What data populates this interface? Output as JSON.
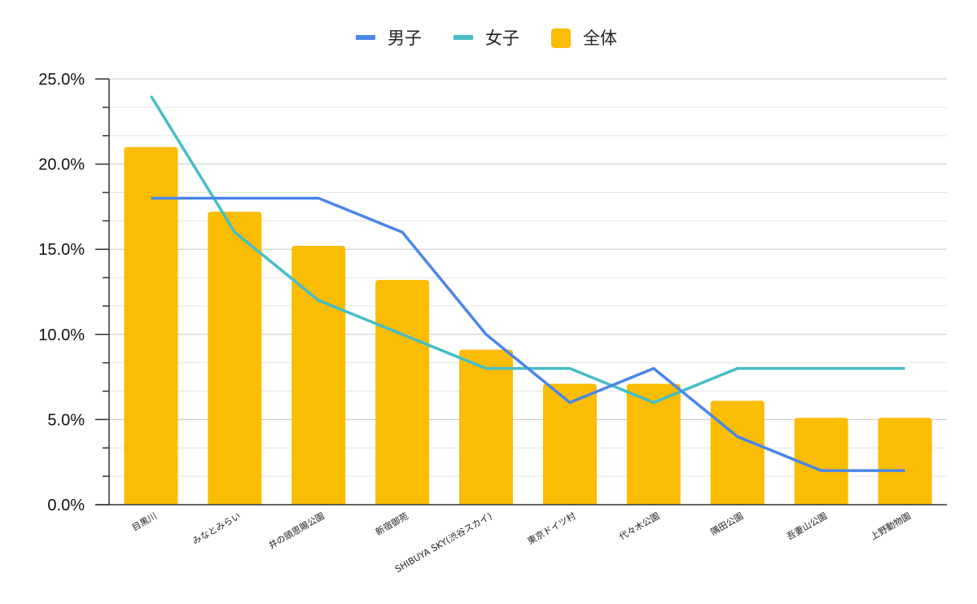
{
  "chart_data": {
    "type": "bar",
    "categories": [
      "目黒川",
      "みなとみらい",
      "井の頭恩賜公園",
      "新宿御苑",
      "SHIBUYA SKY(渋谷スカイ)",
      "東京ドイツ村",
      "代々木公園",
      "隅田公園",
      "吾妻山公園",
      "上野動物園"
    ],
    "series": [
      {
        "name": "男子",
        "kind": "line",
        "color": "#4a86e8",
        "values": [
          18,
          18,
          18,
          16,
          10,
          6,
          8,
          4,
          2,
          2
        ]
      },
      {
        "name": "女子",
        "kind": "line",
        "color": "#46bdc6",
        "values": [
          24,
          16,
          12,
          10,
          8,
          8,
          6,
          8,
          8,
          8
        ]
      },
      {
        "name": "全体",
        "kind": "bar",
        "color": "#fbbc04",
        "values": [
          21,
          17.2,
          15.2,
          13.2,
          9.1,
          7.1,
          7.1,
          6.1,
          5.1,
          5.1
        ]
      }
    ],
    "ylim": [
      0,
      25
    ],
    "yticks": [
      "0.0%",
      "5.0%",
      "10.0%",
      "15.0%",
      "20.0%",
      "25.0%"
    ],
    "grid": true,
    "legend_position": "top-center"
  }
}
